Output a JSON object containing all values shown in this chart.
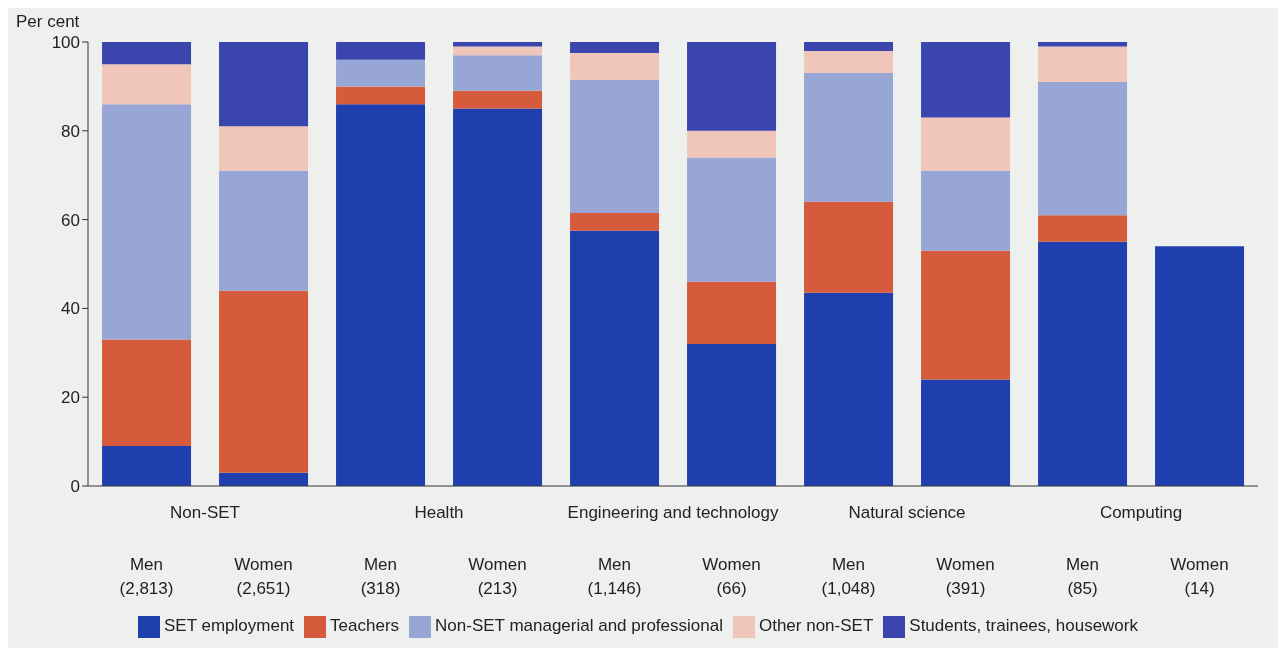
{
  "chart_data": {
    "type": "bar",
    "stacked": true,
    "ylabel": "Per cent",
    "categories": [
      "Men\n(2,813)",
      "Women\n(2,651)",
      "Men\n(318)",
      "Women\n(213)",
      "Men\n(1,146)",
      "Women\n(66)",
      "Men\n(1,048)",
      "Women\n(391)",
      "Men\n(85)",
      "Women\n(14)"
    ],
    "annotations": [
      "Non-SET",
      "Health",
      "Engineering and technology",
      "Natural science",
      "Computing"
    ],
    "series": [
      {
        "name": "SET employment",
        "color": "#1f3fae",
        "values": [
          9,
          3,
          86,
          85,
          57.5,
          32,
          43.5,
          24,
          55,
          54
        ]
      },
      {
        "name": "Teachers",
        "color": "#d65a3c",
        "values": [
          24,
          41,
          4,
          4,
          4,
          14,
          20.5,
          29,
          6,
          null
        ]
      },
      {
        "name": "Non-SET managerial and professional",
        "color": "#98a6d6",
        "values": [
          53,
          27,
          6,
          8,
          30,
          28,
          29,
          18,
          30,
          null
        ]
      },
      {
        "name": "Other non-SET",
        "color": "#f1c6ba",
        "values": [
          9,
          10,
          0,
          2,
          6,
          6,
          5,
          12,
          8,
          null
        ]
      },
      {
        "name": "Students, trainees, housework",
        "color": "#3b45ae",
        "values": [
          5,
          19,
          4,
          1,
          2.5,
          20,
          2,
          17,
          1,
          null
        ]
      }
    ],
    "ylim": [
      0,
      100
    ],
    "yticks": [
      0,
      20,
      40,
      60,
      80,
      100
    ],
    "legend": "bottom"
  }
}
